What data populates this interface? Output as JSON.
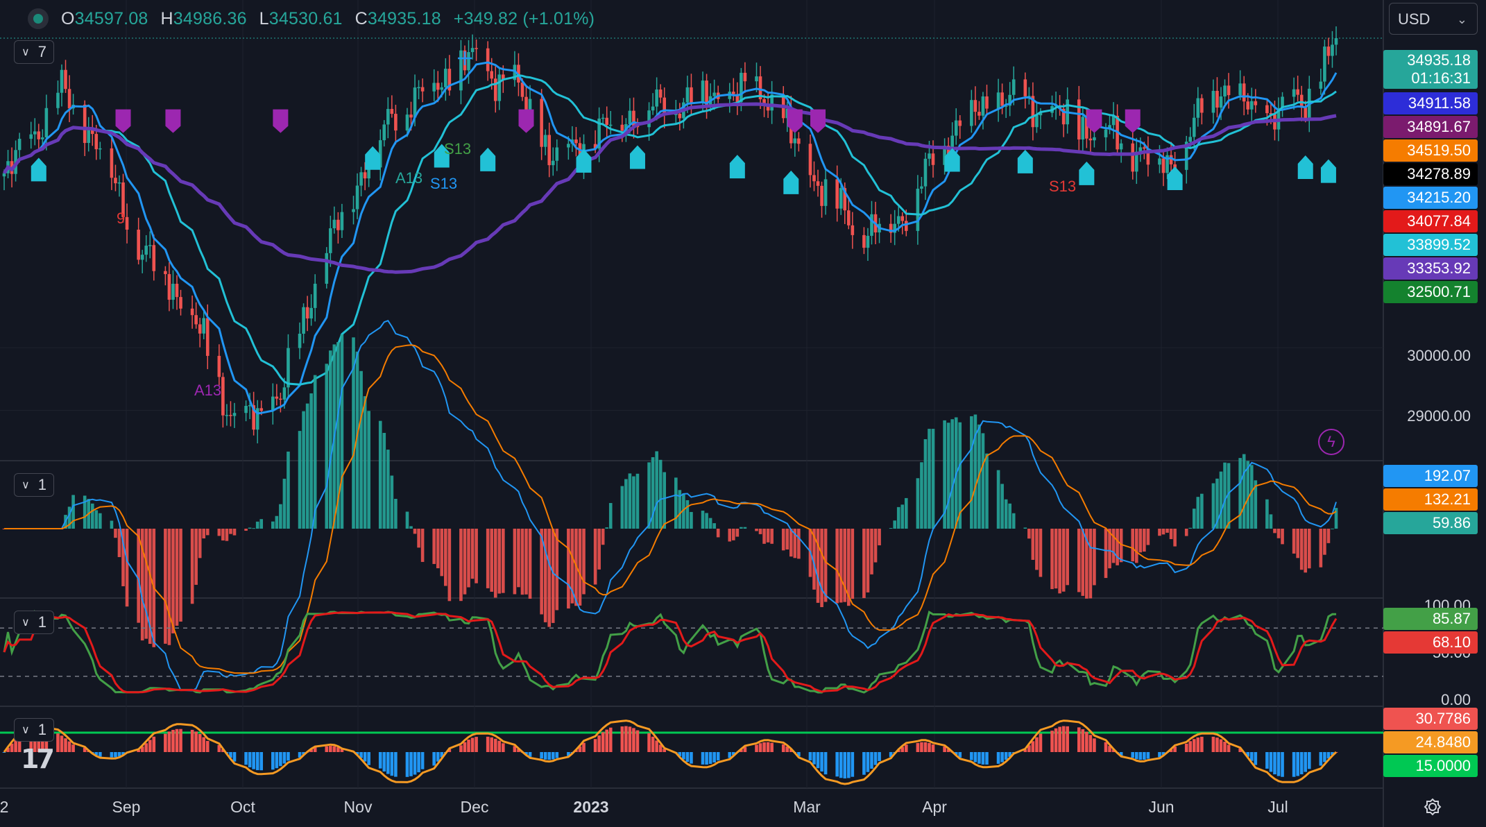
{
  "header": {
    "open_key": "O",
    "open": "34597.08",
    "high_key": "H",
    "high": "34986.36",
    "low_key": "L",
    "low": "34530.61",
    "close_key": "C",
    "close": "34935.18",
    "change": "+349.82 (+1.01%)"
  },
  "currency": {
    "label": "USD"
  },
  "panes": {
    "main_indicator_count": "7",
    "macd_indicator_count": "1",
    "stoch_indicator_count": "1",
    "adx_indicator_count": "1"
  },
  "price_labels": [
    {
      "text": "34935.18",
      "sub": "01:16:31",
      "color": "#26a69a"
    },
    {
      "text": "34911.58",
      "color": "#2d2dd8"
    },
    {
      "text": "34891.67",
      "color": "#7b1b6e"
    },
    {
      "text": "34519.50",
      "color": "#f57c00"
    },
    {
      "text": "34278.89",
      "color": "#000000"
    },
    {
      "text": "34215.20",
      "color": "#2196f3"
    },
    {
      "text": "34077.84",
      "color": "#e31a1a"
    },
    {
      "text": "33899.52",
      "color": "#22c1d6"
    },
    {
      "text": "33353.92",
      "color": "#673ab7"
    },
    {
      "text": "32500.71",
      "color": "#14822e"
    }
  ],
  "price_axis": {
    "t30000": "30000.00",
    "t29000": "29000.00"
  },
  "macd_labels": [
    {
      "text": "192.07",
      "color": "#2196f3"
    },
    {
      "text": "132.21",
      "color": "#f57c00"
    },
    {
      "text": "59.86",
      "color": "#26a69a"
    }
  ],
  "stoch_axis": {
    "t100": "100.00",
    "t50": "50.00",
    "t0": "0.00"
  },
  "stoch_labels": [
    {
      "text": "85.87",
      "color": "#43a047"
    },
    {
      "text": "68.10",
      "color": "#e53935"
    }
  ],
  "adx_labels": [
    {
      "text": "30.7786",
      "color": "#ef5350"
    },
    {
      "text": "24.8480",
      "color": "#f59a23"
    },
    {
      "text": "15.0000",
      "color": "#00c853"
    }
  ],
  "time_axis": [
    {
      "label": "2",
      "bold": false
    },
    {
      "label": "Sep",
      "bold": false
    },
    {
      "label": "Oct",
      "bold": false
    },
    {
      "label": "Nov",
      "bold": false
    },
    {
      "label": "Dec",
      "bold": false
    },
    {
      "label": "2023",
      "bold": true
    },
    {
      "label": "Mar",
      "bold": false
    },
    {
      "label": "Apr",
      "bold": false
    },
    {
      "label": "Jun",
      "bold": false
    },
    {
      "label": "Jul",
      "bold": false
    }
  ],
  "chart_marks": [
    {
      "text": "S13",
      "color": "#43a047"
    },
    {
      "text": "A13",
      "color": "#26a69a"
    },
    {
      "text": "S13",
      "color": "#2196f3"
    },
    {
      "text": "S13",
      "color": "#e53935"
    },
    {
      "text": "A13",
      "color": "#9c27b0"
    },
    {
      "text": "9",
      "color": "#e53935"
    }
  ],
  "chart_data": {
    "type": "candlestick",
    "title": "",
    "x_range": [
      "2022-08",
      "2023-07"
    ],
    "ylim": [
      28300,
      35500
    ],
    "y_ticks": [
      29000,
      30000
    ],
    "grid": true,
    "ohlc_last": {
      "open": 34597.08,
      "high": 34986.36,
      "low": 34530.61,
      "close": 34935.18,
      "change": 349.82,
      "change_pct": 1.01
    },
    "close_path": [
      {
        "date": "2022-08-01",
        "close": 32700
      },
      {
        "date": "2022-08-16",
        "close": 34100
      },
      {
        "date": "2022-08-26",
        "close": 33200
      },
      {
        "date": "2022-09-06",
        "close": 31500
      },
      {
        "date": "2022-09-13",
        "close": 31100
      },
      {
        "date": "2022-09-22",
        "close": 30100
      },
      {
        "date": "2022-09-30",
        "close": 28730
      },
      {
        "date": "2022-10-12",
        "close": 29200
      },
      {
        "date": "2022-10-21",
        "close": 31100
      },
      {
        "date": "2022-11-01",
        "close": 32650
      },
      {
        "date": "2022-11-10",
        "close": 33700
      },
      {
        "date": "2022-11-30",
        "close": 34600
      },
      {
        "date": "2022-12-13",
        "close": 34100
      },
      {
        "date": "2022-12-22",
        "close": 33000
      },
      {
        "date": "2023-01-10",
        "close": 33700
      },
      {
        "date": "2023-01-27",
        "close": 33980
      },
      {
        "date": "2023-02-15",
        "close": 34100
      },
      {
        "date": "2023-02-28",
        "close": 32700
      },
      {
        "date": "2023-03-13",
        "close": 31800
      },
      {
        "date": "2023-03-23",
        "close": 32100
      },
      {
        "date": "2023-04-05",
        "close": 33500
      },
      {
        "date": "2023-04-18",
        "close": 34000
      },
      {
        "date": "2023-05-02",
        "close": 33700
      },
      {
        "date": "2023-05-16",
        "close": 33400
      },
      {
        "date": "2023-05-31",
        "close": 32900
      },
      {
        "date": "2023-06-14",
        "close": 34200
      },
      {
        "date": "2023-06-23",
        "close": 33700
      },
      {
        "date": "2023-07-06",
        "close": 33900
      },
      {
        "date": "2023-07-14",
        "close": 34935
      }
    ],
    "moving_averages": [
      {
        "name": "fast",
        "color": "#2196f3",
        "last": 34911.58
      },
      {
        "name": "mid",
        "color": "#22c1d6",
        "last": 33899.52
      },
      {
        "name": "slow",
        "color": "#673ab7",
        "last": 33353.92
      }
    ],
    "indicators": {
      "macd": {
        "macd": 192.07,
        "signal": 132.21,
        "histogram": 59.86
      },
      "stochastic": {
        "k": 85.87,
        "d": 68.1,
        "upper": 80,
        "lower": 20,
        "ylim": [
          0,
          100
        ]
      },
      "adx": {
        "value": 30.7786,
        "smoothed": 24.848,
        "threshold": 15.0
      }
    }
  }
}
